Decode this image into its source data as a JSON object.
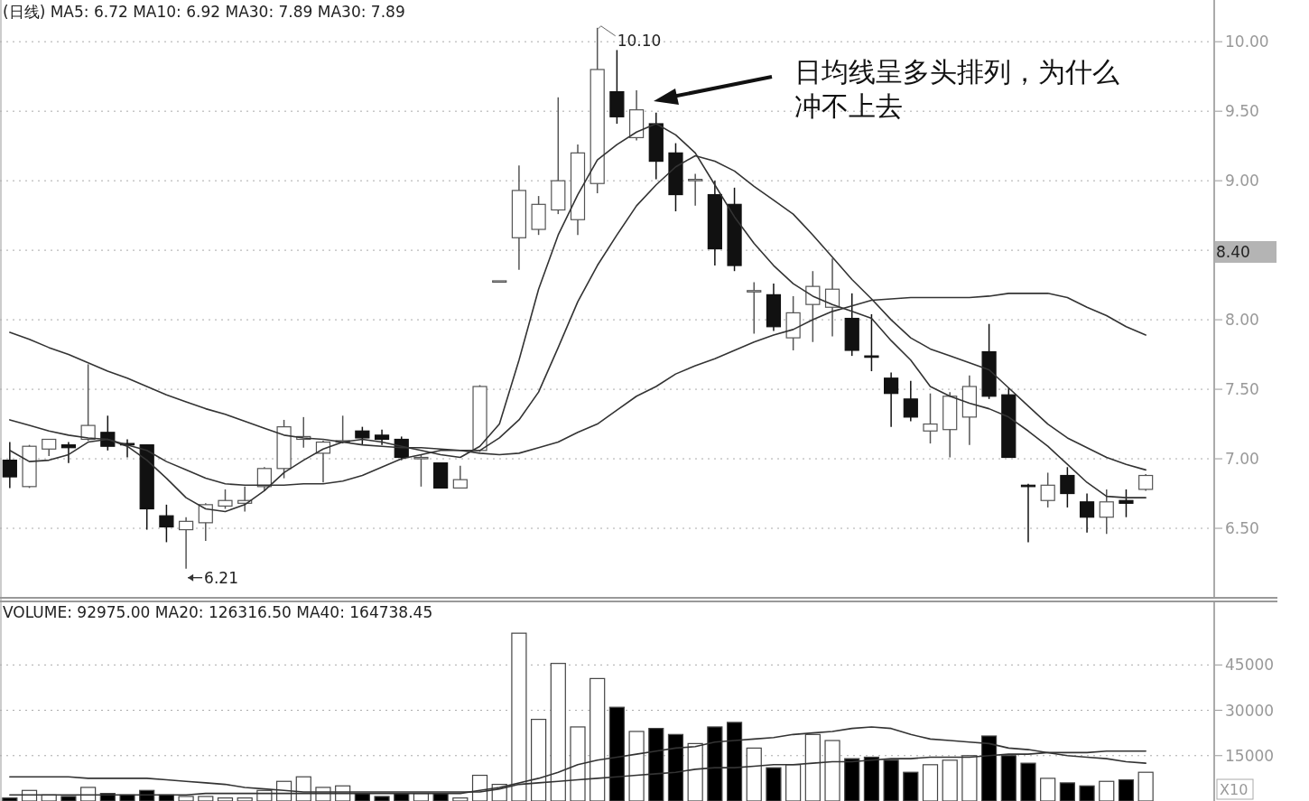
{
  "chart_data": [
    {
      "type": "candlestick",
      "title": "(日线) MA5: 6.72 MA10: 6.92 MA30: 7.89 MA30: 7.89",
      "categories": [
        null,
        null,
        null,
        null,
        null,
        null,
        null,
        null,
        null,
        null,
        null,
        null,
        null,
        null,
        null,
        null,
        null,
        null,
        null,
        null,
        null,
        null,
        null,
        null,
        null,
        null,
        null,
        null,
        null,
        null,
        null,
        null,
        null,
        null,
        null,
        null,
        null,
        null,
        null,
        null,
        null,
        null,
        null,
        null,
        null,
        null,
        null,
        null,
        null,
        null,
        null,
        null,
        null,
        null,
        null,
        null,
        null,
        null,
        null
      ],
      "ohlc": [
        [
          6.99,
          7.12,
          6.79,
          6.87
        ],
        [
          6.8,
          7.1,
          6.79,
          7.09
        ],
        [
          7.07,
          7.14,
          7.02,
          7.14
        ],
        [
          7.1,
          7.12,
          6.97,
          7.08
        ],
        [
          7.14,
          7.68,
          7.13,
          7.24
        ],
        [
          7.19,
          7.31,
          7.06,
          7.09
        ],
        [
          7.11,
          7.14,
          7.01,
          7.1
        ],
        [
          7.1,
          7.1,
          6.49,
          6.64
        ],
        [
          6.59,
          6.67,
          6.4,
          6.51
        ],
        [
          6.49,
          6.58,
          6.21,
          6.55
        ],
        [
          6.54,
          6.68,
          6.41,
          6.67
        ],
        [
          6.66,
          6.78,
          6.64,
          6.7
        ],
        [
          6.68,
          6.8,
          6.62,
          6.7
        ],
        [
          6.8,
          6.94,
          6.77,
          6.93
        ],
        [
          6.93,
          7.28,
          6.86,
          7.23
        ],
        [
          7.14,
          7.3,
          7.08,
          7.16
        ],
        [
          7.04,
          7.13,
          6.83,
          7.12
        ],
        [
          7.12,
          7.31,
          7.11,
          7.13
        ],
        [
          7.2,
          7.23,
          7.1,
          7.15
        ],
        [
          7.17,
          7.21,
          7.1,
          7.14
        ],
        [
          7.14,
          7.16,
          6.99,
          7.01
        ],
        [
          7.0,
          7.03,
          6.8,
          7.01
        ],
        [
          6.97,
          6.97,
          6.79,
          6.79
        ],
        [
          6.79,
          6.95,
          6.79,
          6.85
        ],
        [
          7.06,
          7.53,
          7.05,
          7.52
        ],
        [
          8.28,
          8.28,
          8.28,
          8.28
        ],
        [
          8.59,
          9.11,
          8.36,
          8.93
        ],
        [
          8.65,
          8.89,
          8.61,
          8.83
        ],
        [
          8.79,
          9.6,
          8.76,
          9.0
        ],
        [
          8.72,
          9.26,
          8.61,
          9.2
        ],
        [
          8.98,
          10.1,
          8.91,
          9.8
        ],
        [
          9.64,
          9.94,
          9.41,
          9.46
        ],
        [
          9.31,
          9.65,
          9.29,
          9.51
        ],
        [
          9.41,
          9.49,
          9.01,
          9.14
        ],
        [
          9.2,
          9.27,
          8.78,
          8.9
        ],
        [
          9.0,
          9.05,
          8.82,
          9.01
        ],
        [
          8.9,
          9.0,
          8.39,
          8.51
        ],
        [
          8.83,
          8.95,
          8.35,
          8.39
        ],
        [
          8.2,
          8.27,
          7.9,
          8.21
        ],
        [
          8.18,
          8.26,
          7.92,
          7.95
        ],
        [
          7.87,
          8.17,
          7.78,
          8.05
        ],
        [
          8.11,
          8.35,
          7.84,
          8.24
        ],
        [
          8.09,
          8.44,
          7.88,
          8.22
        ],
        [
          8.01,
          8.19,
          7.74,
          7.78
        ],
        [
          7.74,
          8.04,
          7.63,
          7.73
        ],
        [
          7.58,
          7.62,
          7.23,
          7.47
        ],
        [
          7.43,
          7.56,
          7.27,
          7.3
        ],
        [
          7.2,
          7.47,
          7.11,
          7.25
        ],
        [
          7.21,
          7.48,
          7.01,
          7.45
        ],
        [
          7.3,
          7.6,
          7.1,
          7.52
        ],
        [
          7.77,
          7.97,
          7.43,
          7.45
        ],
        [
          7.46,
          7.51,
          7.01,
          7.01
        ],
        [
          6.81,
          6.82,
          6.4,
          6.8
        ],
        [
          6.7,
          6.9,
          6.65,
          6.81
        ],
        [
          6.88,
          6.94,
          6.65,
          6.75
        ],
        [
          6.69,
          6.75,
          6.47,
          6.58
        ],
        [
          6.58,
          6.78,
          6.46,
          6.69
        ],
        [
          6.7,
          6.78,
          6.58,
          6.68
        ],
        [
          6.78,
          6.89,
          6.77,
          6.88
        ]
      ],
      "series": [
        {
          "type": "line",
          "color": "#333333",
          "values": [
            7.06,
            6.98,
            6.99,
            7.03,
            7.12,
            7.14,
            7.09,
            6.99,
            6.86,
            6.72,
            6.64,
            6.62,
            6.67,
            6.77,
            6.9,
            6.99,
            7.07,
            7.12,
            7.14,
            7.12,
            7.09,
            7.06,
            7.03,
            7.01,
            7.09,
            7.25,
            7.71,
            8.22,
            8.61,
            8.9,
            9.15,
            9.26,
            9.35,
            9.41,
            9.33,
            9.2,
            8.97,
            8.74,
            8.55,
            8.39,
            8.26,
            8.17,
            8.11,
            8.06,
            8.01,
            7.85,
            7.71,
            7.52,
            7.45,
            7.4,
            7.36,
            7.3,
            7.2,
            7.09,
            6.96,
            6.83,
            6.73,
            6.72,
            6.72
          ]
        },
        {
          "type": "line",
          "color": "#333333",
          "values": [
            7.28,
            7.24,
            7.2,
            7.17,
            7.15,
            7.14,
            7.1,
            7.06,
            6.98,
            6.92,
            6.86,
            6.82,
            6.81,
            6.81,
            6.81,
            6.82,
            6.82,
            6.84,
            6.88,
            6.94,
            7.0,
            7.03,
            7.06,
            7.06,
            7.06,
            7.15,
            7.28,
            7.48,
            7.8,
            8.13,
            8.39,
            8.61,
            8.82,
            8.97,
            9.1,
            9.18,
            9.14,
            9.07,
            8.96,
            8.86,
            8.76,
            8.61,
            8.45,
            8.29,
            8.15,
            8.0,
            7.87,
            7.79,
            7.74,
            7.69,
            7.64,
            7.51,
            7.38,
            7.25,
            7.15,
            7.08,
            7.01,
            6.96,
            6.92
          ]
        },
        {
          "type": "line",
          "color": "#333333",
          "values": [
            7.91,
            7.86,
            7.8,
            7.75,
            7.69,
            7.63,
            7.58,
            7.52,
            7.46,
            7.41,
            7.36,
            7.32,
            7.27,
            7.22,
            7.17,
            7.15,
            7.14,
            7.12,
            7.1,
            7.09,
            7.08,
            7.08,
            7.07,
            7.06,
            7.04,
            7.03,
            7.04,
            7.08,
            7.12,
            7.19,
            7.25,
            7.35,
            7.45,
            7.52,
            7.61,
            7.67,
            7.72,
            7.78,
            7.84,
            7.89,
            7.93,
            8.0,
            8.06,
            8.1,
            8.14,
            8.15,
            8.16,
            8.16,
            8.16,
            8.16,
            8.17,
            8.19,
            8.19,
            8.19,
            8.16,
            8.09,
            8.03,
            7.95,
            7.89
          ]
        }
      ],
      "ylim": [
        6.0,
        10.3
      ],
      "yticks": [
        {
          "value": 6.5,
          "label": "6.50"
        },
        {
          "value": 7,
          "label": "7.00"
        },
        {
          "value": 7.5,
          "label": "7.50"
        },
        {
          "value": 8,
          "label": "8.00"
        },
        {
          "value": 8.5,
          "label": null
        },
        {
          "value": 9,
          "label": "9.00"
        },
        {
          "value": 9.5,
          "label": "9.50"
        },
        {
          "value": 10,
          "label": "10.00"
        }
      ],
      "grid": "y",
      "annotations": [
        "10.10",
        "6.21",
        "日均线呈多头排列，为什么冲不上去",
        "8.40"
      ]
    },
    {
      "type": "bar",
      "title": "VOLUME: 92975.00 MA20: 126316.50 MA40: 164738.45",
      "categories": [
        null,
        null,
        null,
        null,
        null,
        null,
        null,
        null,
        null,
        null,
        null,
        null,
        null,
        null,
        null,
        null,
        null,
        null,
        null,
        null,
        null,
        null,
        null,
        null,
        null,
        null,
        null,
        null,
        null,
        null,
        null,
        null,
        null,
        null,
        null,
        null,
        null,
        null,
        null,
        null,
        null,
        null,
        null,
        null,
        null,
        null,
        null,
        null,
        null,
        null,
        null,
        null,
        null,
        null,
        null,
        null,
        null,
        null,
        null
      ],
      "series": [
        {
          "values": [
            1000,
            3500,
            2000,
            1500,
            4500,
            2500,
            2000,
            3500,
            2000,
            1500,
            1500,
            1000,
            1000,
            3500,
            6500,
            8000,
            4500,
            5000,
            2500,
            1500,
            2500,
            2500,
            2500,
            1000,
            8500,
            5500,
            55500,
            27000,
            45500,
            24500,
            40500,
            31000,
            23000,
            24000,
            22000,
            19000,
            24500,
            26000,
            17500,
            11000,
            12000,
            22000,
            20000,
            14000,
            14500,
            13500,
            9500,
            12000,
            13500,
            15000,
            21500,
            15000,
            12500,
            7500,
            6000,
            5000,
            6500,
            7000,
            9500
          ],
          "colors": [
            "#000000",
            "#ffffff",
            "#ffffff",
            "#000000",
            "#ffffff",
            "#000000",
            "#000000",
            "#000000",
            "#000000",
            "#ffffff",
            "#ffffff",
            "#ffffff",
            "#ffffff",
            "#ffffff",
            "#ffffff",
            "#ffffff",
            "#ffffff",
            "#ffffff",
            "#000000",
            "#000000",
            "#000000",
            "#ffffff",
            "#000000",
            "#ffffff",
            "#ffffff",
            "#ffffff",
            "#ffffff",
            "#ffffff",
            "#ffffff",
            "#ffffff",
            "#ffffff",
            "#000000",
            "#ffffff",
            "#000000",
            "#000000",
            "#ffffff",
            "#000000",
            "#000000",
            "#ffffff",
            "#000000",
            "#ffffff",
            "#ffffff",
            "#ffffff",
            "#000000",
            "#000000",
            "#000000",
            "#000000",
            "#ffffff",
            "#ffffff",
            "#ffffff",
            "#000000",
            "#000000",
            "#000000",
            "#ffffff",
            "#000000",
            "#000000",
            "#ffffff",
            "#000000",
            "#ffffff"
          ]
        },
        {
          "type": "line",
          "color": "#333333",
          "values": [
            2000,
            2000,
            2000,
            2000,
            2000,
            2000,
            2000,
            2000,
            2000,
            2000,
            2500,
            2500,
            2500,
            2500,
            2500,
            2500,
            2500,
            2500,
            2500,
            2500,
            2500,
            2500,
            2500,
            2500,
            3500,
            4500,
            6000,
            7500,
            9500,
            12000,
            13500,
            14500,
            15500,
            16500,
            17500,
            18000,
            19500,
            20000,
            20500,
            21000,
            22000,
            22500,
            23000,
            24000,
            24500,
            24000,
            22000,
            20500,
            20000,
            19500,
            19000,
            17500,
            17000,
            16000,
            15000,
            14500,
            14000,
            13000,
            12500
          ]
        },
        {
          "type": "line",
          "color": "#333333",
          "values": [
            8000,
            8000,
            8000,
            8000,
            7500,
            7500,
            7500,
            7500,
            7000,
            6500,
            6000,
            5500,
            4500,
            4000,
            3500,
            3000,
            3000,
            3000,
            3000,
            3000,
            3000,
            3000,
            3000,
            3000,
            3000,
            4000,
            5500,
            6000,
            6500,
            7000,
            7500,
            8000,
            8500,
            9000,
            9500,
            10500,
            11000,
            11000,
            11500,
            12000,
            12000,
            12500,
            13000,
            13000,
            13500,
            14000,
            14000,
            14500,
            14500,
            14500,
            15000,
            15500,
            15500,
            16000,
            16000,
            16000,
            16500,
            16500,
            16500
          ]
        }
      ],
      "ylim": [
        0,
        66000
      ],
      "yticks": [
        15000,
        30000,
        45000
      ],
      "grid": "y",
      "annotations": [
        "X10"
      ]
    }
  ]
}
